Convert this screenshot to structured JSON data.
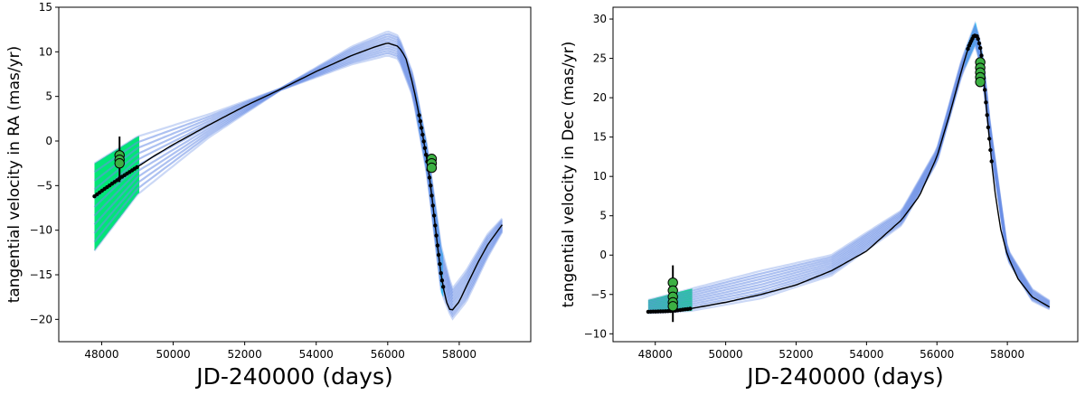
{
  "chart_data": [
    {
      "type": "line",
      "title": "",
      "xlabel": "JD-240000 (days)",
      "ylabel": "tangential velocity in RA (mas/yr)",
      "xlim": [
        46800,
        60000
      ],
      "ylim": [
        -22.5,
        15
      ],
      "x_ticks": [
        48000,
        50000,
        52000,
        54000,
        56000,
        58000
      ],
      "y_ticks": [
        -20,
        -15,
        -10,
        -5,
        0,
        5,
        10,
        15
      ],
      "grid": false,
      "series": [
        {
          "name": "best-fit orbit",
          "color": "#000000",
          "x": [
            47800,
            48000,
            48500,
            49000,
            49500,
            50000,
            51000,
            52000,
            53000,
            54000,
            55000,
            55600,
            56000,
            56300,
            56500,
            56700,
            56900,
            57100,
            57200,
            57300,
            57400,
            57500,
            57600,
            57700,
            57800,
            58000,
            58200,
            58500,
            58800,
            59200
          ],
          "y": [
            -6.2,
            -5.6,
            -4.2,
            -2.9,
            -1.6,
            -0.4,
            1.8,
            3.9,
            5.8,
            7.8,
            9.6,
            10.5,
            11.0,
            10.6,
            9.4,
            6.4,
            2.5,
            -2.2,
            -5.0,
            -8.5,
            -12.0,
            -15.2,
            -17.4,
            -18.8,
            -19.0,
            -18.0,
            -16.3,
            -13.8,
            -11.6,
            -9.4
          ]
        },
        {
          "name": "orbit fan upper envelope",
          "color": "#6a8ee6",
          "x": [
            47800,
            49000,
            51000,
            53000,
            55000,
            56000,
            56300,
            56700,
            57100,
            57500,
            57800,
            58200,
            58800,
            59200
          ],
          "y": [
            -2.5,
            0.5,
            3.0,
            5.9,
            10.6,
            12.3,
            11.8,
            7.6,
            -0.5,
            -12.0,
            -16.6,
            -14.5,
            -10.4,
            -8.7
          ]
        },
        {
          "name": "orbit fan lower envelope",
          "color": "#6a8ee6",
          "x": [
            47800,
            49000,
            51000,
            53000,
            55000,
            56000,
            56300,
            56700,
            57100,
            57500,
            57800,
            58200,
            58800,
            59200
          ],
          "y": [
            -12.3,
            -6.0,
            0.4,
            5.7,
            8.6,
            9.6,
            9.2,
            5.0,
            -3.8,
            -17.0,
            -20.0,
            -18.0,
            -13.0,
            -10.2
          ]
        }
      ],
      "observations": [
        {
          "name": "epoch 1 measurements",
          "x": 48500,
          "y": [
            -1.6,
            -2.1,
            -2.5
          ],
          "err_low": -4.6,
          "err_high": 0.5,
          "color": "#3cb043"
        },
        {
          "name": "epoch 2 measurements",
          "x": 57230,
          "y": [
            -2.0,
            -2.5,
            -3.0
          ],
          "err_low": -3.3,
          "err_high": -1.7,
          "color": "#3cb043"
        }
      ]
    },
    {
      "type": "line",
      "title": "",
      "xlabel": "JD-240000 (days)",
      "ylabel": "tangential velocity in Dec (mas/yr)",
      "xlim": [
        46800,
        60000
      ],
      "ylim": [
        -11,
        31.5
      ],
      "x_ticks": [
        48000,
        50000,
        52000,
        54000,
        56000,
        58000
      ],
      "y_ticks": [
        -10,
        -5,
        0,
        5,
        10,
        15,
        20,
        25,
        30
      ],
      "grid": false,
      "series": [
        {
          "name": "best-fit orbit",
          "color": "#000000",
          "x": [
            47800,
            48500,
            49000,
            50000,
            51000,
            52000,
            53000,
            54000,
            55000,
            55500,
            56000,
            56400,
            56700,
            56900,
            57050,
            57150,
            57250,
            57350,
            57450,
            57550,
            57650,
            57800,
            58000,
            58300,
            58700,
            59200
          ],
          "y": [
            -7.2,
            -7.1,
            -6.8,
            -6.0,
            -5.0,
            -3.8,
            -2.0,
            0.5,
            4.5,
            7.5,
            12.5,
            18.5,
            23.5,
            26.5,
            27.9,
            27.8,
            26.0,
            21.5,
            16.5,
            12.0,
            8.0,
            3.5,
            0.0,
            -3.0,
            -5.3,
            -6.6
          ]
        },
        {
          "name": "orbit fan upper envelope",
          "color": "#6a8ee6",
          "x": [
            47800,
            49000,
            51000,
            53000,
            55000,
            56000,
            56700,
            57100,
            57300,
            57500,
            58000,
            58700,
            59200
          ],
          "y": [
            -5.7,
            -4.3,
            -2.0,
            0.0,
            5.7,
            13.5,
            24.8,
            29.6,
            25.5,
            17.0,
            0.8,
            -4.3,
            -5.8
          ]
        },
        {
          "name": "orbit fan lower envelope",
          "color": "#6a8ee6",
          "x": [
            47800,
            49000,
            51000,
            53000,
            55000,
            56000,
            56700,
            57100,
            57300,
            57500,
            58000,
            58700,
            59200
          ],
          "y": [
            -7.4,
            -7.1,
            -5.5,
            -2.6,
            3.8,
            11.8,
            22.8,
            26.8,
            22.5,
            14.5,
            -0.6,
            -5.8,
            -6.9
          ]
        }
      ],
      "observations": [
        {
          "name": "epoch 1 measurements",
          "x": 48500,
          "y": [
            -3.5,
            -4.5,
            -5.3,
            -6.0,
            -6.5
          ],
          "err_low": -8.5,
          "err_high": -1.3,
          "color": "#3cb043"
        },
        {
          "name": "epoch 2 measurements",
          "x": 57230,
          "y": [
            24.5,
            23.8,
            23.2,
            22.6,
            22.0
          ],
          "err_low": 21.5,
          "err_high": 25.0,
          "color": "#3cb043"
        }
      ]
    }
  ]
}
